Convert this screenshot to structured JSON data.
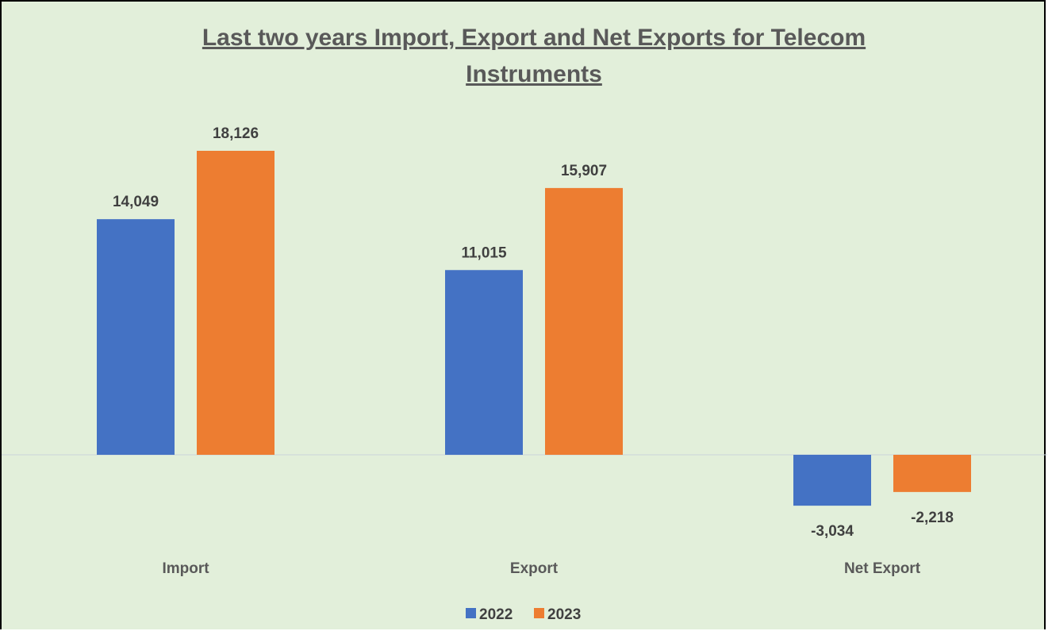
{
  "chart_data": {
    "type": "bar",
    "title_line1": "Last two years Import, Export and Net Exports for Telecom",
    "title_line2": "Instruments",
    "categories": [
      "Import",
      "Export",
      "Net Export"
    ],
    "series": [
      {
        "name": "2022",
        "values": [
          14049,
          11015,
          -3034
        ],
        "labels": [
          "14,049",
          "11,015",
          "-3,034"
        ],
        "color": "#4472c4"
      },
      {
        "name": "2023",
        "values": [
          18126,
          15907,
          -2218
        ],
        "labels": [
          "18,126",
          "15,907",
          "-2,218"
        ],
        "color": "#ed7d31"
      }
    ],
    "legend_position": "bottom",
    "grid": false,
    "background": "#e2efda"
  }
}
